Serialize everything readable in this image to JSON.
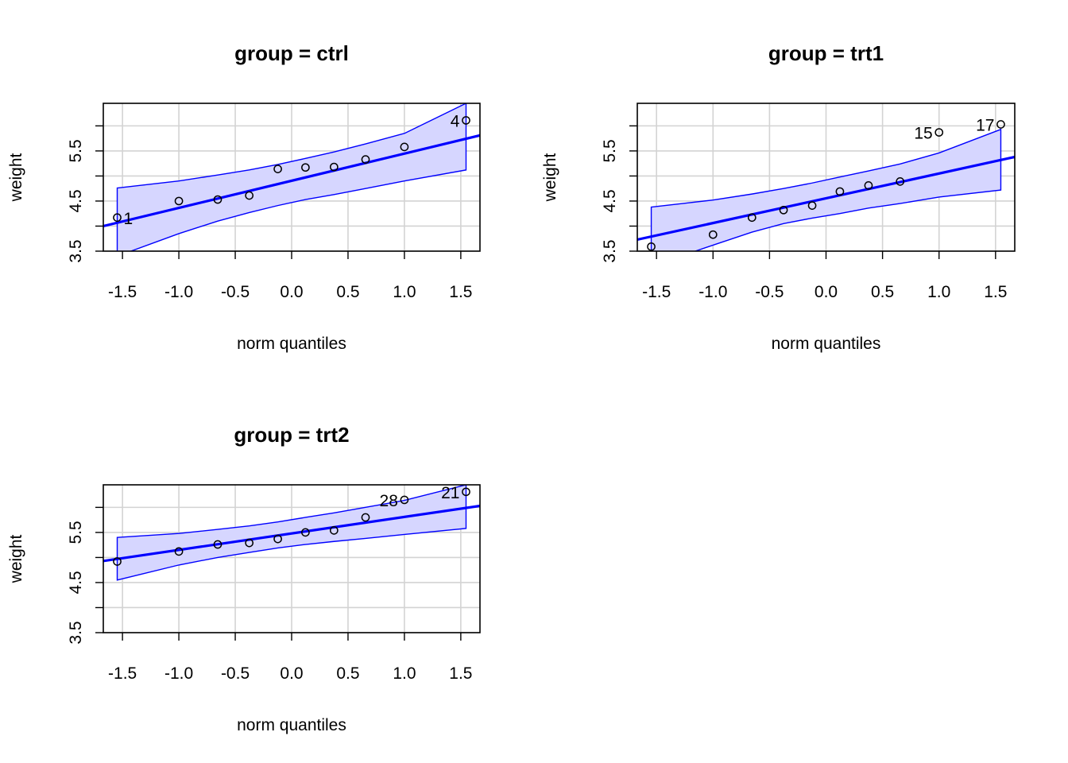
{
  "chart_data": [
    {
      "type": "scatter",
      "title": "group = ctrl",
      "xlabel": "norm quantiles",
      "ylabel": "weight",
      "xlim": [
        -1.67,
        1.67
      ],
      "ylim": [
        3.5,
        6.45
      ],
      "xticks": [
        "-1.5",
        "-1.0",
        "-0.5",
        "0.0",
        "0.5",
        "1.0",
        "1.5"
      ],
      "yticks": [
        "3.5",
        "4.5",
        "5.5"
      ],
      "grid": true,
      "points": {
        "x": [
          -1.5466,
          -1.0,
          -0.6554,
          -0.3758,
          -0.1226,
          0.1226,
          0.3758,
          0.6554,
          1.0,
          1.5466
        ],
        "y": [
          4.17,
          4.5,
          4.53,
          4.61,
          5.14,
          5.17,
          5.18,
          5.33,
          5.58,
          6.11
        ]
      },
      "fit_line": {
        "x": [
          -1.67,
          1.67
        ],
        "y": [
          4.0,
          5.81
        ]
      },
      "envelope": {
        "x": [
          -1.5466,
          -1.0,
          -0.6554,
          -0.3758,
          -0.1226,
          0.1226,
          0.3758,
          0.6554,
          1.0,
          1.5466
        ],
        "upper": [
          4.76,
          4.9,
          5.02,
          5.12,
          5.23,
          5.35,
          5.48,
          5.64,
          5.85,
          6.45
        ],
        "lower": [
          3.4,
          3.85,
          4.1,
          4.27,
          4.41,
          4.53,
          4.63,
          4.75,
          4.9,
          5.12
        ]
      },
      "point_labels": [
        {
          "text": "1",
          "x": -1.5466,
          "y": 4.17
        },
        {
          "text": "4",
          "x": 1.5466,
          "y": 6.11
        }
      ]
    },
    {
      "type": "scatter",
      "title": "group = trt1",
      "xlabel": "norm quantiles",
      "ylabel": "weight",
      "xlim": [
        -1.67,
        1.67
      ],
      "ylim": [
        3.5,
        6.45
      ],
      "xticks": [
        "-1.5",
        "-1.0",
        "-0.5",
        "0.0",
        "0.5",
        "1.0",
        "1.5"
      ],
      "yticks": [
        "3.5",
        "4.5",
        "5.5"
      ],
      "grid": true,
      "points": {
        "x": [
          -1.5466,
          -1.0,
          -0.6554,
          -0.3758,
          -0.1226,
          0.1226,
          0.3758,
          0.6554,
          1.0,
          1.5466
        ],
        "y": [
          3.59,
          3.83,
          4.17,
          4.32,
          4.41,
          4.69,
          4.81,
          4.89,
          5.87,
          6.03
        ]
      },
      "fit_line": {
        "x": [
          -1.67,
          1.67
        ],
        "y": [
          3.73,
          5.38
        ]
      },
      "envelope": {
        "x": [
          -1.5466,
          -1.0,
          -0.6554,
          -0.3758,
          -0.1226,
          0.1226,
          0.3758,
          0.6554,
          1.0,
          1.5466
        ],
        "upper": [
          4.38,
          4.52,
          4.64,
          4.75,
          4.86,
          4.98,
          5.1,
          5.24,
          5.46,
          5.93
        ],
        "lower": [
          3.2,
          3.62,
          3.88,
          4.05,
          4.16,
          4.25,
          4.36,
          4.45,
          4.58,
          4.72
        ]
      },
      "point_labels": [
        {
          "text": "15",
          "x": 1.0,
          "y": 5.87
        },
        {
          "text": "17",
          "x": 1.5466,
          "y": 6.03
        }
      ]
    },
    {
      "type": "scatter",
      "title": "group = trt2",
      "xlabel": "norm quantiles",
      "ylabel": "weight",
      "xlim": [
        -1.67,
        1.67
      ],
      "ylim": [
        3.5,
        6.45
      ],
      "xticks": [
        "-1.5",
        "-1.0",
        "-0.5",
        "0.0",
        "0.5",
        "1.0",
        "1.5"
      ],
      "yticks": [
        "3.5",
        "4.5",
        "5.5"
      ],
      "grid": true,
      "points": {
        "x": [
          -1.5466,
          -1.0,
          -0.6554,
          -0.3758,
          -0.1226,
          0.1226,
          0.3758,
          0.6554,
          1.0,
          1.5466
        ],
        "y": [
          4.92,
          5.12,
          5.26,
          5.29,
          5.37,
          5.5,
          5.54,
          5.8,
          6.15,
          6.31
        ]
      },
      "fit_line": {
        "x": [
          -1.67,
          1.67
        ],
        "y": [
          4.93,
          6.03
        ]
      },
      "envelope": {
        "x": [
          -1.5466,
          -1.0,
          -0.6554,
          -0.3758,
          -0.1226,
          0.1226,
          0.3758,
          0.6554,
          1.0,
          1.5466
        ],
        "upper": [
          5.4,
          5.48,
          5.56,
          5.63,
          5.71,
          5.8,
          5.89,
          6.0,
          6.14,
          6.45
        ],
        "lower": [
          4.55,
          4.85,
          5.0,
          5.1,
          5.19,
          5.26,
          5.32,
          5.38,
          5.46,
          5.58
        ]
      },
      "point_labels": [
        {
          "text": "28",
          "x": 1.0,
          "y": 6.15
        },
        {
          "text": "21",
          "x": 1.5466,
          "y": 6.31
        }
      ]
    }
  ],
  "colors": {
    "line": "#0000ff",
    "envelope_fill": "#d6d6ff",
    "grid": "#d3d3d3",
    "points": "#000000"
  }
}
